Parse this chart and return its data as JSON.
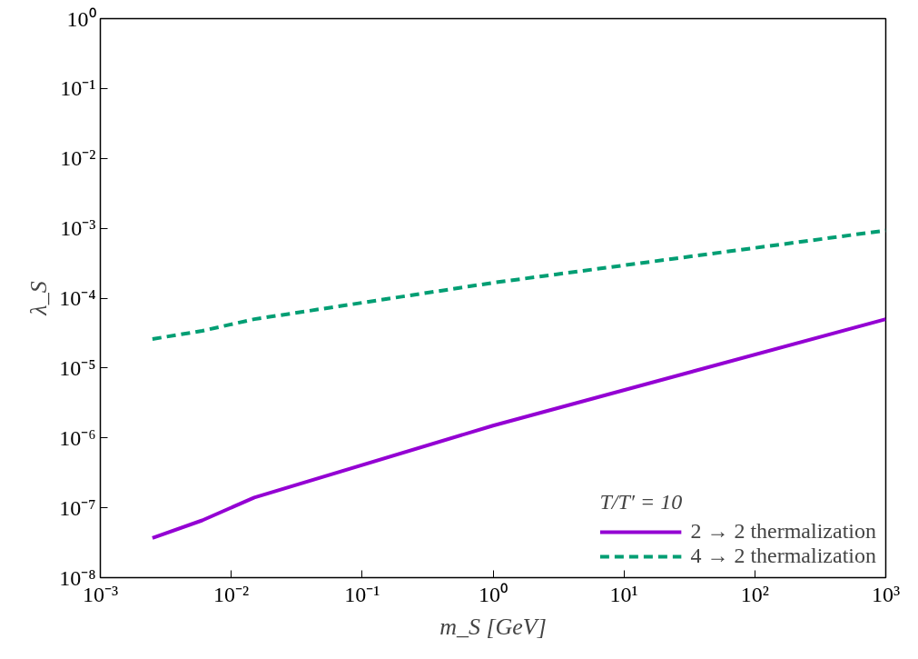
{
  "chart_data": {
    "type": "line",
    "xlabel": "m_S [GeV]",
    "ylabel": "λ_S",
    "legend_title": "T/T′ = 10",
    "log": "xy",
    "grid": false,
    "legend": "bottom right",
    "xlim": [
      0.001,
      1000
    ],
    "ylim": [
      1e-08,
      1
    ],
    "xticks": [
      {
        "value": 0.001,
        "label": "10⁻³"
      },
      {
        "value": 0.01,
        "label": "10⁻²"
      },
      {
        "value": 0.1,
        "label": "10⁻¹"
      },
      {
        "value": 1,
        "label": "10⁰"
      },
      {
        "value": 10,
        "label": "10¹"
      },
      {
        "value": 100,
        "label": "10²"
      },
      {
        "value": 1000,
        "label": "10³"
      }
    ],
    "yticks": [
      {
        "value": 1e-08,
        "label": "10⁻⁸"
      },
      {
        "value": 1e-07,
        "label": "10⁻⁷"
      },
      {
        "value": 1e-06,
        "label": "10⁻⁶"
      },
      {
        "value": 1e-05,
        "label": "10⁻⁵"
      },
      {
        "value": 0.0001,
        "label": "10⁻⁴"
      },
      {
        "value": 0.001,
        "label": "10⁻³"
      },
      {
        "value": 0.01,
        "label": "10⁻²"
      },
      {
        "value": 0.1,
        "label": "10⁻¹"
      },
      {
        "value": 1,
        "label": "10⁰"
      }
    ],
    "series": [
      {
        "name": "2 → 2 thermalization",
        "color": "#9400d3",
        "line_style": "solid",
        "x": [
          0.0025,
          0.006,
          0.015,
          1,
          1000
        ],
        "values": [
          3.7e-08,
          6.6e-08,
          1.4e-07,
          1.5e-06,
          5e-05
        ]
      },
      {
        "name": "4 → 2 thermalization",
        "color": "#009e73",
        "line_style": "dashed",
        "x": [
          0.0025,
          0.006,
          0.015,
          1,
          1000
        ],
        "values": [
          2.6e-05,
          3.4e-05,
          5e-05,
          0.000166,
          0.00093
        ]
      }
    ]
  }
}
